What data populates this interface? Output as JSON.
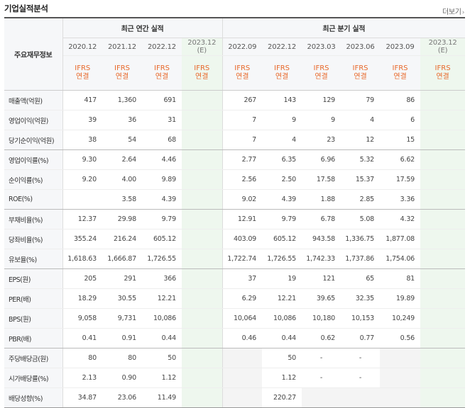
{
  "header": {
    "title": "기업실적분석",
    "more_label": "더보기"
  },
  "table": {
    "label_header": "주요재무정보",
    "annual_group": "최근 연간 실적",
    "quarter_group": "최근 분기 실적",
    "annual_periods": [
      {
        "date": "2020.12",
        "basis": [
          "IFRS",
          "연결"
        ]
      },
      {
        "date": "2021.12",
        "basis": [
          "IFRS",
          "연결"
        ]
      },
      {
        "date": "2022.12",
        "basis": [
          "IFRS",
          "연결"
        ]
      },
      {
        "date": "2023.12",
        "note": "(E)",
        "basis": [
          "IFRS",
          "연결"
        ]
      }
    ],
    "quarter_periods": [
      {
        "date": "2022.09",
        "basis": [
          "IFRS",
          "연결"
        ]
      },
      {
        "date": "2022.12",
        "basis": [
          "IFRS",
          "연결"
        ]
      },
      {
        "date": "2023.03",
        "basis": [
          "IFRS",
          "연결"
        ]
      },
      {
        "date": "2023.06",
        "basis": [
          "IFRS",
          "연결"
        ]
      },
      {
        "date": "2023.09",
        "basis": [
          "IFRS",
          "연결"
        ]
      },
      {
        "date": "2023.12",
        "note": "(E)",
        "basis": [
          "IFRS",
          "연결"
        ]
      }
    ],
    "rows": [
      {
        "label": "매출액(억원)",
        "annual": [
          "417",
          "1,360",
          "691",
          ""
        ],
        "quarter": [
          "267",
          "143",
          "129",
          "79",
          "86",
          ""
        ]
      },
      {
        "label": "영업이익(억원)",
        "annual": [
          "39",
          "36",
          "31",
          ""
        ],
        "quarter": [
          "7",
          "9",
          "9",
          "4",
          "6",
          ""
        ]
      },
      {
        "label": "당기순이익(억원)",
        "annual": [
          "38",
          "54",
          "68",
          ""
        ],
        "quarter": [
          "7",
          "4",
          "23",
          "12",
          "15",
          ""
        ]
      },
      {
        "label": "영업이익률(%)",
        "annual": [
          "9.30",
          "2.64",
          "4.46",
          ""
        ],
        "quarter": [
          "2.77",
          "6.35",
          "6.96",
          "5.32",
          "6.62",
          ""
        ]
      },
      {
        "label": "순이익률(%)",
        "annual": [
          "9.20",
          "4.00",
          "9.89",
          ""
        ],
        "quarter": [
          "2.56",
          "2.50",
          "17.58",
          "15.37",
          "17.59",
          ""
        ]
      },
      {
        "label": "ROE(%)",
        "annual": [
          "",
          "3.58",
          "4.39",
          ""
        ],
        "quarter": [
          "9.02",
          "4.39",
          "1.88",
          "2.85",
          "3.36",
          ""
        ]
      },
      {
        "label": "부채비율(%)",
        "annual": [
          "12.37",
          "29.98",
          "9.79",
          ""
        ],
        "quarter": [
          "12.91",
          "9.79",
          "6.78",
          "5.08",
          "4.32",
          ""
        ]
      },
      {
        "label": "당좌비율(%)",
        "annual": [
          "355.24",
          "216.24",
          "605.12",
          ""
        ],
        "quarter": [
          "403.09",
          "605.12",
          "943.58",
          "1,336.75",
          "1,877.08",
          ""
        ]
      },
      {
        "label": "유보율(%)",
        "annual": [
          "1,618.63",
          "1,666.87",
          "1,726.55",
          ""
        ],
        "quarter": [
          "1,722.74",
          "1,726.55",
          "1,742.33",
          "1,737.86",
          "1,754.06",
          ""
        ]
      },
      {
        "label": "EPS(원)",
        "annual": [
          "205",
          "291",
          "366",
          ""
        ],
        "quarter": [
          "37",
          "19",
          "121",
          "65",
          "81",
          ""
        ]
      },
      {
        "label": "PER(배)",
        "annual": [
          "18.29",
          "30.55",
          "12.21",
          ""
        ],
        "quarter": [
          "6.29",
          "12.21",
          "39.65",
          "32.35",
          "19.89",
          ""
        ]
      },
      {
        "label": "BPS(원)",
        "annual": [
          "9,058",
          "9,731",
          "10,086",
          ""
        ],
        "quarter": [
          "10,064",
          "10,086",
          "10,180",
          "10,153",
          "10,249",
          ""
        ]
      },
      {
        "label": "PBR(배)",
        "annual": [
          "0.41",
          "0.91",
          "0.44",
          ""
        ],
        "quarter": [
          "0.46",
          "0.44",
          "0.62",
          "0.77",
          "0.56",
          ""
        ]
      },
      {
        "label": "주당배당금(원)",
        "annual": [
          "80",
          "80",
          "50",
          ""
        ],
        "quarter": [
          "",
          "50",
          "-",
          "-",
          "",
          ""
        ]
      },
      {
        "label": "시가배당률(%)",
        "annual": [
          "2.13",
          "0.90",
          "1.12",
          ""
        ],
        "quarter": [
          "",
          "1.12",
          "-",
          "-",
          "",
          ""
        ]
      },
      {
        "label": "배당성향(%)",
        "annual": [
          "34.87",
          "23.06",
          "11.49",
          ""
        ],
        "quarter": [
          "",
          "220.27",
          "",
          "",
          "",
          ""
        ]
      }
    ]
  }
}
